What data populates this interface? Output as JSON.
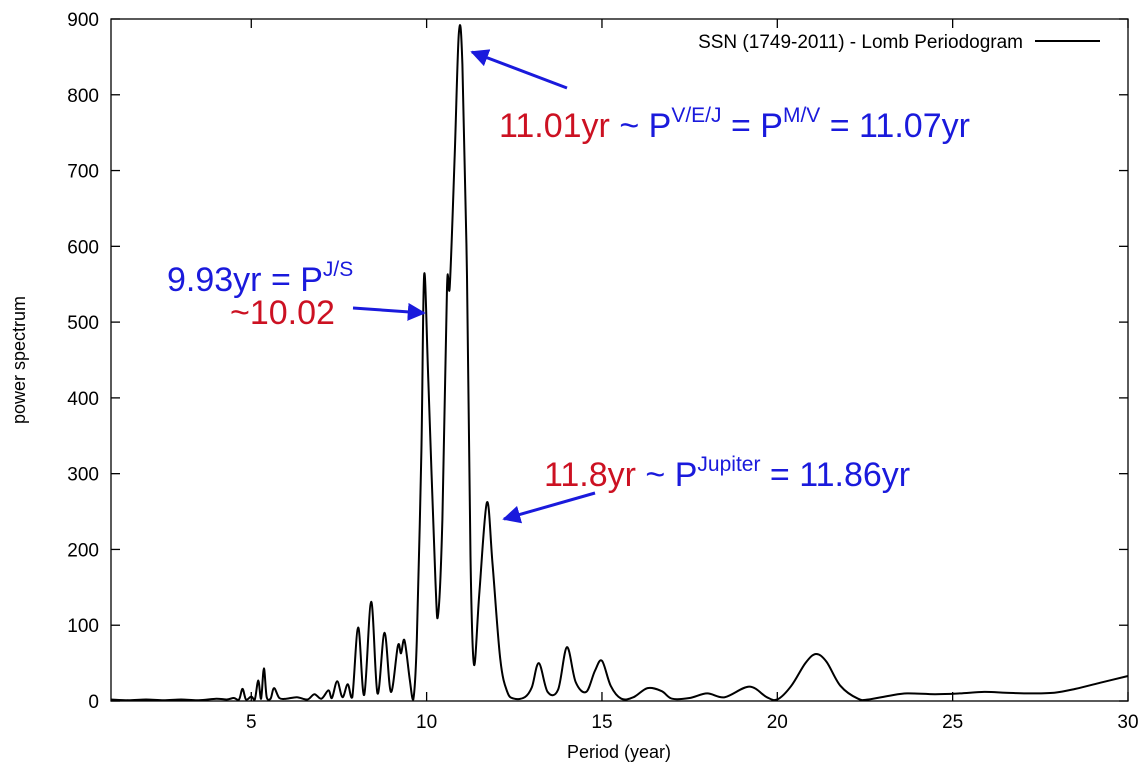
{
  "chart_data": {
    "type": "line",
    "xlabel": "Period (year)",
    "ylabel": "power spectrum",
    "xlim": [
      1,
      30
    ],
    "ylim": [
      0,
      900
    ],
    "xticks": [
      5,
      10,
      15,
      20,
      25,
      30
    ],
    "yticks": [
      0,
      100,
      200,
      300,
      400,
      500,
      600,
      700,
      800,
      900
    ],
    "grid": false,
    "legend_position": "top-right",
    "series": [
      {
        "name": "SSN (1749-2011) - Lomb Periodogram",
        "color": "#000000",
        "points": [
          [
            1.0,
            2
          ],
          [
            1.5,
            1
          ],
          [
            2.0,
            2
          ],
          [
            2.5,
            1
          ],
          [
            3.0,
            2
          ],
          [
            3.5,
            1
          ],
          [
            4.0,
            3
          ],
          [
            4.3,
            2
          ],
          [
            4.5,
            4
          ],
          [
            4.65,
            2
          ],
          [
            4.75,
            16
          ],
          [
            4.85,
            2
          ],
          [
            5.0,
            6
          ],
          [
            5.1,
            2
          ],
          [
            5.2,
            27
          ],
          [
            5.28,
            3
          ],
          [
            5.36,
            43
          ],
          [
            5.44,
            5
          ],
          [
            5.55,
            3
          ],
          [
            5.65,
            17
          ],
          [
            5.8,
            4
          ],
          [
            6.0,
            3
          ],
          [
            6.3,
            5
          ],
          [
            6.6,
            2
          ],
          [
            6.8,
            9
          ],
          [
            7.0,
            3
          ],
          [
            7.2,
            14
          ],
          [
            7.3,
            4
          ],
          [
            7.45,
            26
          ],
          [
            7.6,
            5
          ],
          [
            7.75,
            22
          ],
          [
            7.88,
            5
          ],
          [
            8.05,
            97
          ],
          [
            8.22,
            8
          ],
          [
            8.42,
            131
          ],
          [
            8.6,
            10
          ],
          [
            8.8,
            90
          ],
          [
            8.98,
            12
          ],
          [
            9.18,
            73
          ],
          [
            9.27,
            63
          ],
          [
            9.37,
            80
          ],
          [
            9.52,
            28
          ],
          [
            9.62,
            2
          ],
          [
            9.72,
            80
          ],
          [
            9.85,
            330
          ],
          [
            9.93,
            563
          ],
          [
            10.05,
            420
          ],
          [
            10.25,
            160
          ],
          [
            10.33,
            115
          ],
          [
            10.45,
            240
          ],
          [
            10.58,
            545
          ],
          [
            10.66,
            548
          ],
          [
            10.8,
            720
          ],
          [
            10.92,
            882
          ],
          [
            11.02,
            840
          ],
          [
            11.15,
            560
          ],
          [
            11.25,
            190
          ],
          [
            11.35,
            48
          ],
          [
            11.5,
            140
          ],
          [
            11.72,
            262
          ],
          [
            11.88,
            180
          ],
          [
            12.1,
            55
          ],
          [
            12.3,
            12
          ],
          [
            12.5,
            3
          ],
          [
            12.8,
            5
          ],
          [
            13.0,
            18
          ],
          [
            13.2,
            50
          ],
          [
            13.45,
            12
          ],
          [
            13.75,
            15
          ],
          [
            14.0,
            71
          ],
          [
            14.25,
            25
          ],
          [
            14.55,
            12
          ],
          [
            14.8,
            40
          ],
          [
            15.0,
            53
          ],
          [
            15.25,
            20
          ],
          [
            15.55,
            3
          ],
          [
            15.9,
            5
          ],
          [
            16.3,
            17
          ],
          [
            16.7,
            13
          ],
          [
            17.0,
            3
          ],
          [
            17.5,
            4
          ],
          [
            18.0,
            10
          ],
          [
            18.5,
            5
          ],
          [
            19.2,
            19
          ],
          [
            19.7,
            5
          ],
          [
            20.0,
            2
          ],
          [
            20.4,
            20
          ],
          [
            20.8,
            50
          ],
          [
            21.1,
            62
          ],
          [
            21.4,
            52
          ],
          [
            21.8,
            20
          ],
          [
            22.3,
            3
          ],
          [
            22.6,
            2
          ],
          [
            23.2,
            7
          ],
          [
            23.7,
            10
          ],
          [
            24.5,
            9
          ],
          [
            25.2,
            10
          ],
          [
            25.9,
            12
          ],
          [
            26.5,
            11
          ],
          [
            27.2,
            10
          ],
          [
            27.9,
            11
          ],
          [
            28.5,
            16
          ],
          [
            29.2,
            24
          ],
          [
            30.0,
            33
          ]
        ]
      }
    ],
    "annotations": [
      {
        "point": [
          10.92,
          882
        ],
        "parts": [
          {
            "text": "11.01yr",
            "color": "#cc1122"
          },
          {
            "text": " ~ P",
            "color": "#1a1adc"
          },
          {
            "text": "V/E/J",
            "color": "#1a1adc",
            "sup": true
          },
          {
            "text": " = P",
            "color": "#1a1adc"
          },
          {
            "text": "M/V",
            "color": "#1a1adc",
            "sup": true
          },
          {
            "text": " = 11.07yr",
            "color": "#1a1adc"
          }
        ]
      },
      {
        "point": [
          9.93,
          563
        ],
        "parts": [
          {
            "text": "9.93yr = P",
            "color": "#1a1adc"
          },
          {
            "text": "J/S",
            "color": "#1a1adc",
            "sup": true
          }
        ],
        "second_line": {
          "text": "~10.02",
          "color": "#cc1122"
        }
      },
      {
        "point": [
          11.72,
          262
        ],
        "parts": [
          {
            "text": "11.8yr",
            "color": "#cc1122"
          },
          {
            "text": " ~ P",
            "color": "#1a1adc"
          },
          {
            "text": "Jupiter",
            "color": "#1a1adc",
            "sup": true
          },
          {
            "text": " = 11.86yr",
            "color": "#1a1adc"
          }
        ]
      }
    ]
  }
}
